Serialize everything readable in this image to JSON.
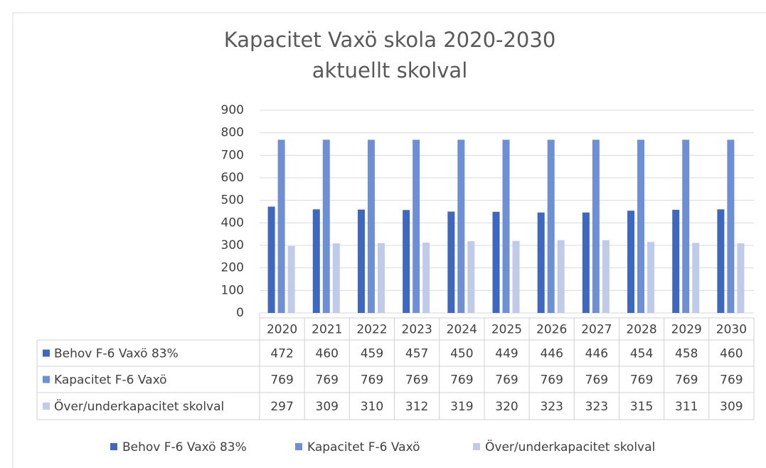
{
  "chart_data": {
    "type": "bar",
    "title": "Kapacitet Vaxö skola 2020-2030",
    "subtitle": "aktuellt skolval",
    "categories": [
      "2020",
      "2021",
      "2022",
      "2023",
      "2024",
      "2025",
      "2026",
      "2027",
      "2028",
      "2029",
      "2030"
    ],
    "series": [
      {
        "name": "Behov F-6 Vaxö 83%",
        "color": "#3e67bf",
        "values": [
          472,
          460,
          459,
          457,
          450,
          449,
          446,
          446,
          454,
          458,
          460
        ]
      },
      {
        "name": "Kapacitet F-6 Vaxö",
        "color": "#6f8fd4",
        "values": [
          769,
          769,
          769,
          769,
          769,
          769,
          769,
          769,
          769,
          769,
          769
        ]
      },
      {
        "name": "Över/underkapacitet skolval",
        "color": "#bfcbe8",
        "values": [
          297,
          309,
          310,
          312,
          319,
          320,
          323,
          323,
          315,
          311,
          309
        ]
      }
    ],
    "ylim": [
      0,
      900
    ],
    "yticks": [
      0,
      100,
      200,
      300,
      400,
      500,
      600,
      700,
      800,
      900
    ],
    "grid": true,
    "legend": "bottom"
  }
}
